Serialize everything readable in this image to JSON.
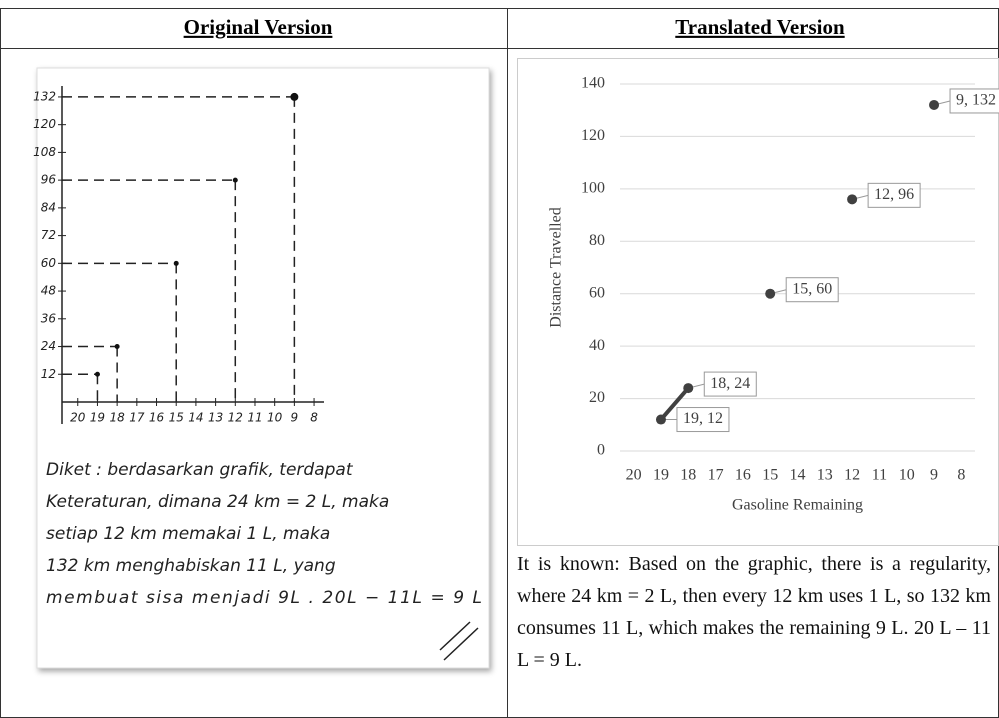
{
  "left": {
    "title": "Original Version",
    "sketch": {
      "type": "scatter",
      "x": [
        19,
        18,
        15,
        12,
        9
      ],
      "values": [
        12,
        24,
        60,
        96,
        132
      ],
      "xlim": [
        20.8,
        7.8
      ],
      "ylim": [
        0,
        135
      ],
      "xticks": [
        20,
        19,
        18,
        17,
        16,
        15,
        14,
        13,
        12,
        11,
        10,
        9,
        8
      ],
      "yticks": [
        12,
        24,
        36,
        48,
        60,
        72,
        84,
        96,
        108,
        120,
        132
      ]
    },
    "note_lines": [
      "Diket : berdasarkan grafik, terdapat",
      "Keteraturan, dimana 24 km = 2 L, maka",
      "setiap 12 km memakai 1 L, maka",
      "132 km menghabiskan 11 L, yang",
      "membuat sisa menjadi 9L . 20L − 11L = 9 L"
    ]
  },
  "right": {
    "title": "Translated Version",
    "chart": {
      "type": "scatter",
      "x_label": "Gasoline Remaining",
      "y_label": "Distance Travelled",
      "x": [
        19,
        18,
        15,
        12,
        9
      ],
      "values": [
        12,
        24,
        60,
        96,
        132
      ],
      "value_labels": [
        "19, 12",
        "18, 24",
        "15, 60",
        "12, 96",
        "9, 132"
      ],
      "xlim": [
        20.5,
        7.5
      ],
      "ylim": [
        0,
        140
      ],
      "xticks": [
        20,
        19,
        18,
        17,
        16,
        15,
        14,
        13,
        12,
        11,
        10,
        9,
        8
      ],
      "yticks": [
        0,
        20,
        40,
        60,
        80,
        100,
        120,
        140
      ],
      "grid": true,
      "color": "#404040"
    },
    "text": "It is known: Based on the graphic, there is a regularity, where 24 km = 2 L, then every 12 km uses 1 L, so 132 km consumes 11 L, which makes the remaining 9 L. 20 L – 11 L = 9 L."
  }
}
